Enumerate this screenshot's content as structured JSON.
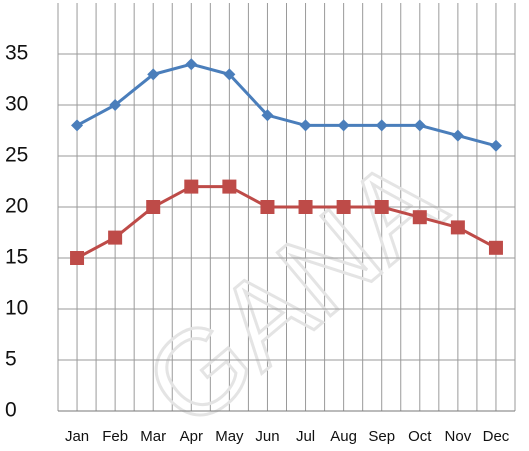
{
  "chart_data": {
    "type": "line",
    "categories": [
      "Jan",
      "Feb",
      "Mar",
      "Apr",
      "May",
      "Jun",
      "Jul",
      "Aug",
      "Sep",
      "Oct",
      "Nov",
      "Dec"
    ],
    "series": [
      {
        "color": "#4a7ebb",
        "marker": "diamond",
        "values": [
          28,
          30,
          33,
          34,
          33,
          29,
          28,
          28,
          28,
          28,
          27,
          26
        ]
      },
      {
        "color": "#be4b48",
        "marker": "square",
        "values": [
          15,
          17,
          20,
          22,
          22,
          20,
          20,
          20,
          20,
          19,
          18,
          16
        ]
      }
    ],
    "ylim": [
      0,
      40
    ],
    "yticks": [
      0,
      5,
      10,
      15,
      20,
      25,
      30,
      35
    ],
    "grid": true,
    "watermark": "GANA"
  }
}
